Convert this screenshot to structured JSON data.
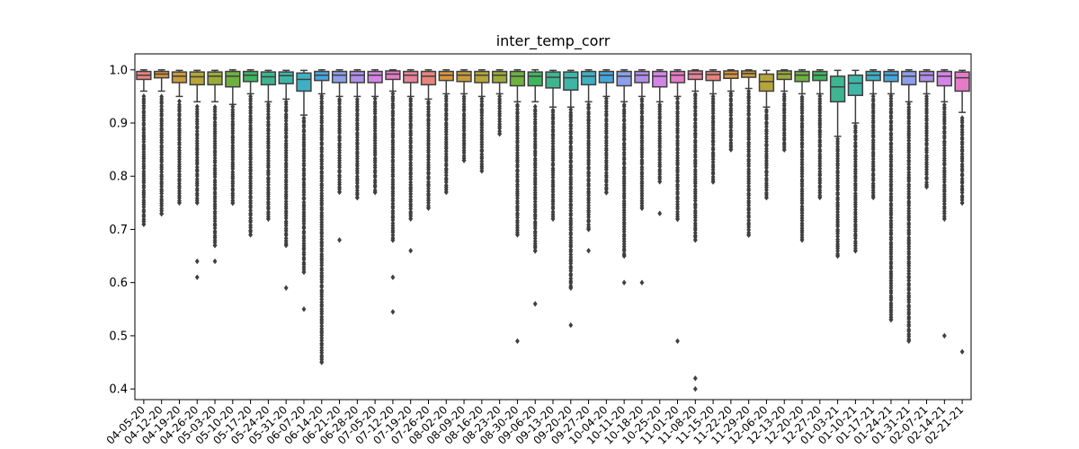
{
  "chart_data": {
    "type": "box",
    "title": "inter_temp_corr",
    "xlabel": "",
    "ylabel": "",
    "ylim": [
      0.38,
      1.03
    ],
    "yticks": [
      "0.4",
      "0.5",
      "0.6",
      "0.7",
      "0.8",
      "0.9",
      "1.0"
    ],
    "grid": false,
    "colors": [
      "#e8847c",
      "#d9963c",
      "#c79a3a",
      "#b5a53a",
      "#9aaa3a",
      "#6fb03f",
      "#3fb45f",
      "#3fb58f",
      "#3fb5a8",
      "#3fb0c4",
      "#46a6dc",
      "#8c9fe8",
      "#b08ee8",
      "#d484e6",
      "#e57bc6",
      "#e8829a"
    ],
    "categories": [
      "04-05-20",
      "04-12-20",
      "04-19-20",
      "04-26-20",
      "05-03-20",
      "05-10-20",
      "05-17-20",
      "05-24-20",
      "05-31-20",
      "06-07-20",
      "06-14-20",
      "06-21-20",
      "06-28-20",
      "07-05-20",
      "07-12-20",
      "07-19-20",
      "07-26-20",
      "08-02-20",
      "08-09-20",
      "08-16-20",
      "08-23-20",
      "08-30-20",
      "09-06-20",
      "09-13-20",
      "09-20-20",
      "09-27-20",
      "10-04-20",
      "10-11-20",
      "10-18-20",
      "10-25-20",
      "11-01-20",
      "11-08-20",
      "11-15-20",
      "11-22-20",
      "11-29-20",
      "12-06-20",
      "12-13-20",
      "12-20-20",
      "12-27-20",
      "01-03-21",
      "01-10-21",
      "01-17-21",
      "01-24-21",
      "01-31-21",
      "02-07-21",
      "02-14-21",
      "02-21-21"
    ],
    "x_tick_labels": [
      "04-05-20",
      "04-12-20",
      "04-19-20",
      "04-26-20",
      "05-03-20",
      "05-10-20",
      "05-17-20",
      "05-24-20",
      "05-31-20",
      "06-07-20",
      "06-14-20",
      "06-21-20",
      "06-28-20",
      "07-05-20",
      "07-12-20",
      "07-19-20",
      "07-26-20",
      "08-02-20",
      "08-09-20",
      "08-16-20",
      "08-23-20",
      "08-30-20",
      "09-06-20",
      "09-13-20",
      "09-20-20",
      "09-27-20",
      "10-04-20",
      "10-11-20",
      "10-18-20",
      "10-25-20",
      "11-01-20",
      "11-08-20",
      "11-15-20",
      "11-22-20",
      "11-29-20",
      "12-06-20",
      "12-13-20",
      "12-20-20",
      "12-27-20",
      "01-03-21",
      "01-10-21",
      "01-17-21",
      "01-24-21",
      "01-31-21",
      "02-07-21",
      "02-14-21",
      "02-21-21"
    ],
    "boxes": [
      {
        "q1": 0.982,
        "median": 0.99,
        "q3": 0.997,
        "whisker_low": 0.96,
        "whisker_high": 1.0,
        "outliers": [
          0.95,
          0.71
        ]
      },
      {
        "q1": 0.985,
        "median": 0.992,
        "q3": 0.997,
        "whisker_low": 0.96,
        "whisker_high": 1.0,
        "outliers": [
          0.95,
          0.73
        ]
      },
      {
        "q1": 0.976,
        "median": 0.988,
        "q3": 0.996,
        "whisker_low": 0.95,
        "whisker_high": 0.999,
        "outliers": [
          0.94,
          0.75
        ]
      },
      {
        "q1": 0.972,
        "median": 0.987,
        "q3": 0.996,
        "whisker_low": 0.94,
        "whisker_high": 0.999,
        "outliers": [
          0.93,
          0.75,
          0.64,
          0.61
        ]
      },
      {
        "q1": 0.972,
        "median": 0.988,
        "q3": 0.996,
        "whisker_low": 0.94,
        "whisker_high": 0.999,
        "outliers": [
          0.93,
          0.67,
          0.64
        ]
      },
      {
        "q1": 0.968,
        "median": 0.988,
        "q3": 0.997,
        "whisker_low": 0.935,
        "whisker_high": 1.0,
        "outliers": [
          0.93,
          0.75
        ]
      },
      {
        "q1": 0.978,
        "median": 0.99,
        "q3": 0.997,
        "whisker_low": 0.955,
        "whisker_high": 1.0,
        "outliers": [
          0.95,
          0.69
        ]
      },
      {
        "q1": 0.972,
        "median": 0.987,
        "q3": 0.996,
        "whisker_low": 0.94,
        "whisker_high": 0.999,
        "outliers": [
          0.935,
          0.72
        ]
      },
      {
        "q1": 0.974,
        "median": 0.989,
        "q3": 0.996,
        "whisker_low": 0.945,
        "whisker_high": 0.999,
        "outliers": [
          0.94,
          0.67,
          0.59
        ]
      },
      {
        "q1": 0.96,
        "median": 0.982,
        "q3": 0.994,
        "whisker_low": 0.915,
        "whisker_high": 0.999,
        "outliers": [
          0.91,
          0.62,
          0.55
        ]
      },
      {
        "q1": 0.98,
        "median": 0.99,
        "q3": 0.997,
        "whisker_low": 0.955,
        "whisker_high": 1.0,
        "outliers": [
          0.95,
          0.45
        ]
      },
      {
        "q1": 0.976,
        "median": 0.99,
        "q3": 0.997,
        "whisker_low": 0.95,
        "whisker_high": 1.0,
        "outliers": [
          0.945,
          0.77,
          0.68
        ]
      },
      {
        "q1": 0.976,
        "median": 0.99,
        "q3": 0.997,
        "whisker_low": 0.95,
        "whisker_high": 1.0,
        "outliers": [
          0.945,
          0.76
        ]
      },
      {
        "q1": 0.976,
        "median": 0.99,
        "q3": 0.997,
        "whisker_low": 0.95,
        "whisker_high": 1.0,
        "outliers": [
          0.945,
          0.77
        ]
      },
      {
        "q1": 0.982,
        "median": 0.992,
        "q3": 0.998,
        "whisker_low": 0.96,
        "whisker_high": 1.0,
        "outliers": [
          0.955,
          0.68,
          0.61,
          0.545
        ]
      },
      {
        "q1": 0.976,
        "median": 0.99,
        "q3": 0.997,
        "whisker_low": 0.95,
        "whisker_high": 1.0,
        "outliers": [
          0.945,
          0.72,
          0.66
        ]
      },
      {
        "q1": 0.972,
        "median": 0.988,
        "q3": 0.997,
        "whisker_low": 0.945,
        "whisker_high": 1.0,
        "outliers": [
          0.94,
          0.74
        ]
      },
      {
        "q1": 0.98,
        "median": 0.99,
        "q3": 0.997,
        "whisker_low": 0.955,
        "whisker_high": 1.0,
        "outliers": [
          0.95,
          0.77
        ]
      },
      {
        "q1": 0.978,
        "median": 0.99,
        "q3": 0.997,
        "whisker_low": 0.955,
        "whisker_high": 1.0,
        "outliers": [
          0.95,
          0.83
        ]
      },
      {
        "q1": 0.976,
        "median": 0.99,
        "q3": 0.997,
        "whisker_low": 0.95,
        "whisker_high": 1.0,
        "outliers": [
          0.945,
          0.81
        ]
      },
      {
        "q1": 0.976,
        "median": 0.99,
        "q3": 0.997,
        "whisker_low": 0.955,
        "whisker_high": 1.0,
        "outliers": [
          0.95,
          0.88
        ]
      },
      {
        "q1": 0.97,
        "median": 0.988,
        "q3": 0.997,
        "whisker_low": 0.94,
        "whisker_high": 1.0,
        "outliers": [
          0.935,
          0.69,
          0.49
        ]
      },
      {
        "q1": 0.97,
        "median": 0.988,
        "q3": 0.996,
        "whisker_low": 0.94,
        "whisker_high": 1.0,
        "outliers": [
          0.93,
          0.66,
          0.56
        ]
      },
      {
        "q1": 0.966,
        "median": 0.986,
        "q3": 0.996,
        "whisker_low": 0.93,
        "whisker_high": 0.999,
        "outliers": [
          0.925,
          0.72
        ]
      },
      {
        "q1": 0.962,
        "median": 0.985,
        "q3": 0.996,
        "whisker_low": 0.93,
        "whisker_high": 0.999,
        "outliers": [
          0.925,
          0.59,
          0.52
        ]
      },
      {
        "q1": 0.972,
        "median": 0.988,
        "q3": 0.997,
        "whisker_low": 0.94,
        "whisker_high": 1.0,
        "outliers": [
          0.935,
          0.7,
          0.66
        ]
      },
      {
        "q1": 0.976,
        "median": 0.99,
        "q3": 0.997,
        "whisker_low": 0.95,
        "whisker_high": 1.0,
        "outliers": [
          0.945,
          0.77
        ]
      },
      {
        "q1": 0.97,
        "median": 0.988,
        "q3": 0.997,
        "whisker_low": 0.94,
        "whisker_high": 1.0,
        "outliers": [
          0.935,
          0.65,
          0.6
        ]
      },
      {
        "q1": 0.976,
        "median": 0.99,
        "q3": 0.997,
        "whisker_low": 0.95,
        "whisker_high": 1.0,
        "outliers": [
          0.945,
          0.74,
          0.6
        ]
      },
      {
        "q1": 0.968,
        "median": 0.988,
        "q3": 0.997,
        "whisker_low": 0.94,
        "whisker_high": 1.0,
        "outliers": [
          0.935,
          0.79,
          0.73
        ]
      },
      {
        "q1": 0.976,
        "median": 0.99,
        "q3": 0.997,
        "whisker_low": 0.95,
        "whisker_high": 1.0,
        "outliers": [
          0.945,
          0.72,
          0.49
        ]
      },
      {
        "q1": 0.982,
        "median": 0.992,
        "q3": 0.998,
        "whisker_low": 0.96,
        "whisker_high": 1.0,
        "outliers": [
          0.955,
          0.68,
          0.42,
          0.4
        ]
      },
      {
        "q1": 0.98,
        "median": 0.991,
        "q3": 0.997,
        "whisker_low": 0.955,
        "whisker_high": 1.0,
        "outliers": [
          0.95,
          0.79
        ]
      },
      {
        "q1": 0.984,
        "median": 0.992,
        "q3": 0.998,
        "whisker_low": 0.96,
        "whisker_high": 1.0,
        "outliers": [
          0.955,
          0.85
        ]
      },
      {
        "q1": 0.986,
        "median": 0.993,
        "q3": 0.998,
        "whisker_low": 0.965,
        "whisker_high": 1.0,
        "outliers": [
          0.96,
          0.69
        ]
      },
      {
        "q1": 0.96,
        "median": 0.978,
        "q3": 0.992,
        "whisker_low": 0.93,
        "whisker_high": 0.999,
        "outliers": [
          0.925,
          0.76
        ]
      },
      {
        "q1": 0.982,
        "median": 0.992,
        "q3": 0.998,
        "whisker_low": 0.96,
        "whisker_high": 1.0,
        "outliers": [
          0.955,
          0.85
        ]
      },
      {
        "q1": 0.978,
        "median": 0.99,
        "q3": 0.997,
        "whisker_low": 0.955,
        "whisker_high": 1.0,
        "outliers": [
          0.95,
          0.68
        ]
      },
      {
        "q1": 0.98,
        "median": 0.99,
        "q3": 0.997,
        "whisker_low": 0.955,
        "whisker_high": 1.0,
        "outliers": [
          0.95,
          0.76
        ]
      },
      {
        "q1": 0.94,
        "median": 0.968,
        "q3": 0.988,
        "whisker_low": 0.875,
        "whisker_high": 0.999,
        "outliers": [
          0.87,
          0.65
        ]
      },
      {
        "q1": 0.952,
        "median": 0.975,
        "q3": 0.99,
        "whisker_low": 0.9,
        "whisker_high": 0.999,
        "outliers": [
          0.895,
          0.66
        ]
      },
      {
        "q1": 0.98,
        "median": 0.99,
        "q3": 0.997,
        "whisker_low": 0.955,
        "whisker_high": 1.0,
        "outliers": [
          0.95,
          0.76
        ]
      },
      {
        "q1": 0.978,
        "median": 0.99,
        "q3": 0.997,
        "whisker_low": 0.955,
        "whisker_high": 1.0,
        "outliers": [
          0.95,
          0.53
        ]
      },
      {
        "q1": 0.972,
        "median": 0.988,
        "q3": 0.997,
        "whisker_low": 0.94,
        "whisker_high": 1.0,
        "outliers": [
          0.935,
          0.49
        ]
      },
      {
        "q1": 0.978,
        "median": 0.99,
        "q3": 0.997,
        "whisker_low": 0.955,
        "whisker_high": 1.0,
        "outliers": [
          0.95,
          0.78
        ]
      },
      {
        "q1": 0.97,
        "median": 0.988,
        "q3": 0.997,
        "whisker_low": 0.94,
        "whisker_high": 1.0,
        "outliers": [
          0.935,
          0.72,
          0.5
        ]
      },
      {
        "q1": 0.96,
        "median": 0.985,
        "q3": 0.996,
        "whisker_low": 0.92,
        "whisker_high": 0.999,
        "outliers": [
          0.91,
          0.75,
          0.47
        ]
      }
    ]
  }
}
